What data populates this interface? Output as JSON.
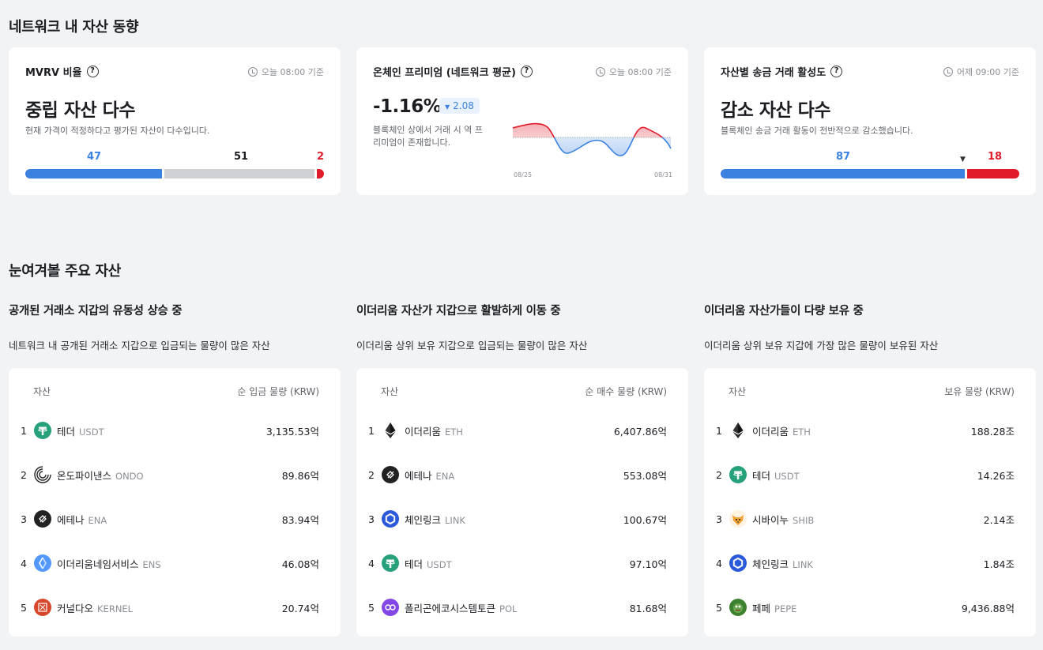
{
  "sections": {
    "network_title": "네트워크 내 자산 동향",
    "watch_title": "눈여겨볼 주요 자산"
  },
  "mvrv": {
    "title": "MVRV 비율",
    "time": "오늘 08:00 기준",
    "headline": "중립 자산 다수",
    "desc": "현재 가격이 적정하다고 평가된 자산이 다수입니다.",
    "low": "47",
    "mid": "51",
    "high": "2"
  },
  "premium": {
    "title": "온체인 프리미엄 (네트워크 평균)",
    "time": "오늘 08:00 기준",
    "value": "-1.16%",
    "change": "2.08",
    "desc": "블록체인 상에서 거래 시 역 프리미엄이 존재합니다.",
    "x_start": "08/25",
    "x_end": "08/31"
  },
  "activity": {
    "title": "자산별 송금 거래 활성도",
    "time": "어제 09:00 기준",
    "headline": "감소 자산 다수",
    "desc": "블록체인 송금 거래 활동이 전반적으로 감소했습니다.",
    "down": "87",
    "up": "18"
  },
  "lists": [
    {
      "title": "공개된 거래소 지갑의 유동성 상승 중",
      "desc": "네트워크 내 공개된 거래소 지갑으로 입금되는 물량이 많은 자산",
      "col_asset": "자산",
      "col_value": "순 입금 물량 (KRW)",
      "rows": [
        {
          "rank": "1",
          "name": "테더",
          "symbol": "USDT",
          "value": "3,135.53억",
          "icon": "usdt",
          "color": "#26a17b"
        },
        {
          "rank": "2",
          "name": "온도파이낸스",
          "symbol": "ONDO",
          "value": "89.86억",
          "icon": "ondo",
          "color": "#ffffff"
        },
        {
          "rank": "3",
          "name": "에테나",
          "symbol": "ENA",
          "value": "83.94억",
          "icon": "ena",
          "color": "#222222"
        },
        {
          "rank": "4",
          "name": "이더리움네임서비스",
          "symbol": "ENS",
          "value": "46.08억",
          "icon": "ens",
          "color": "#5298ff"
        },
        {
          "rank": "5",
          "name": "커널다오",
          "symbol": "KERNEL",
          "value": "20.74억",
          "icon": "kernel",
          "color": "#d8472b"
        }
      ]
    },
    {
      "title": "이더리움 자산가 지갑으로 활발하게 이동 중",
      "desc": "이더리움 상위 보유 지갑으로 입금되는 물량이 많은 자산",
      "col_asset": "자산",
      "col_value": "순 매수 물량 (KRW)",
      "rows": [
        {
          "rank": "1",
          "name": "이더리움",
          "symbol": "ETH",
          "value": "6,407.86억",
          "icon": "eth",
          "color": "#ffffff"
        },
        {
          "rank": "2",
          "name": "에테나",
          "symbol": "ENA",
          "value": "553.08억",
          "icon": "ena",
          "color": "#222222"
        },
        {
          "rank": "3",
          "name": "체인링크",
          "symbol": "LINK",
          "value": "100.67억",
          "icon": "link",
          "color": "#2a5ada"
        },
        {
          "rank": "4",
          "name": "테더",
          "symbol": "USDT",
          "value": "97.10억",
          "icon": "usdt",
          "color": "#26a17b"
        },
        {
          "rank": "5",
          "name": "폴리곤에코시스템토큰",
          "symbol": "POL",
          "value": "81.68억",
          "icon": "pol",
          "color": "#8247e5"
        }
      ]
    },
    {
      "title": "이더리움 자산가들이 다량 보유 중",
      "desc": "이더리움 상위 보유 지갑에 가장 많은 물량이 보유된 자산",
      "col_asset": "자산",
      "col_value": "보유 물량 (KRW)",
      "rows": [
        {
          "rank": "1",
          "name": "이더리움",
          "symbol": "ETH",
          "value": "188.28조",
          "icon": "eth",
          "color": "#ffffff"
        },
        {
          "rank": "2",
          "name": "테더",
          "symbol": "USDT",
          "value": "14.26조",
          "icon": "usdt",
          "color": "#26a17b"
        },
        {
          "rank": "3",
          "name": "시바이누",
          "symbol": "SHIB",
          "value": "2.14조",
          "icon": "shib",
          "color": "#f0a032"
        },
        {
          "rank": "4",
          "name": "체인링크",
          "symbol": "LINK",
          "value": "1.84조",
          "icon": "link",
          "color": "#2a5ada"
        },
        {
          "rank": "5",
          "name": "페페",
          "symbol": "PEPE",
          "value": "9,436.88억",
          "icon": "pepe",
          "color": "#3d8130"
        }
      ]
    }
  ]
}
